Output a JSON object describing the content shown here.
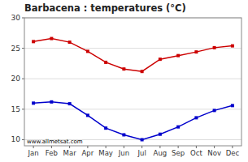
{
  "chart_data": {
    "type": "line",
    "title": "Barbacena : temperatures (°C)",
    "categories": [
      "Jan",
      "Feb",
      "Mar",
      "Apr",
      "May",
      "Jun",
      "Jul",
      "Aug",
      "Sep",
      "Oct",
      "Nov",
      "Dec"
    ],
    "series": [
      {
        "color": "#cc0000",
        "marker": "square",
        "values": [
          26.1,
          26.6,
          26.0,
          24.5,
          22.7,
          21.6,
          21.2,
          23.2,
          23.8,
          24.4,
          25.1,
          25.4
        ]
      },
      {
        "color": "#0000cc",
        "marker": "square",
        "values": [
          16.0,
          16.2,
          15.9,
          14.0,
          11.9,
          10.8,
          10.0,
          10.9,
          12.1,
          13.6,
          14.8,
          15.6
        ]
      }
    ],
    "ylim": [
      9,
      30
    ],
    "yticks": [
      10,
      15,
      20,
      25,
      30
    ],
    "grid": true,
    "annotations": [
      "www.allmetsat.com"
    ]
  }
}
